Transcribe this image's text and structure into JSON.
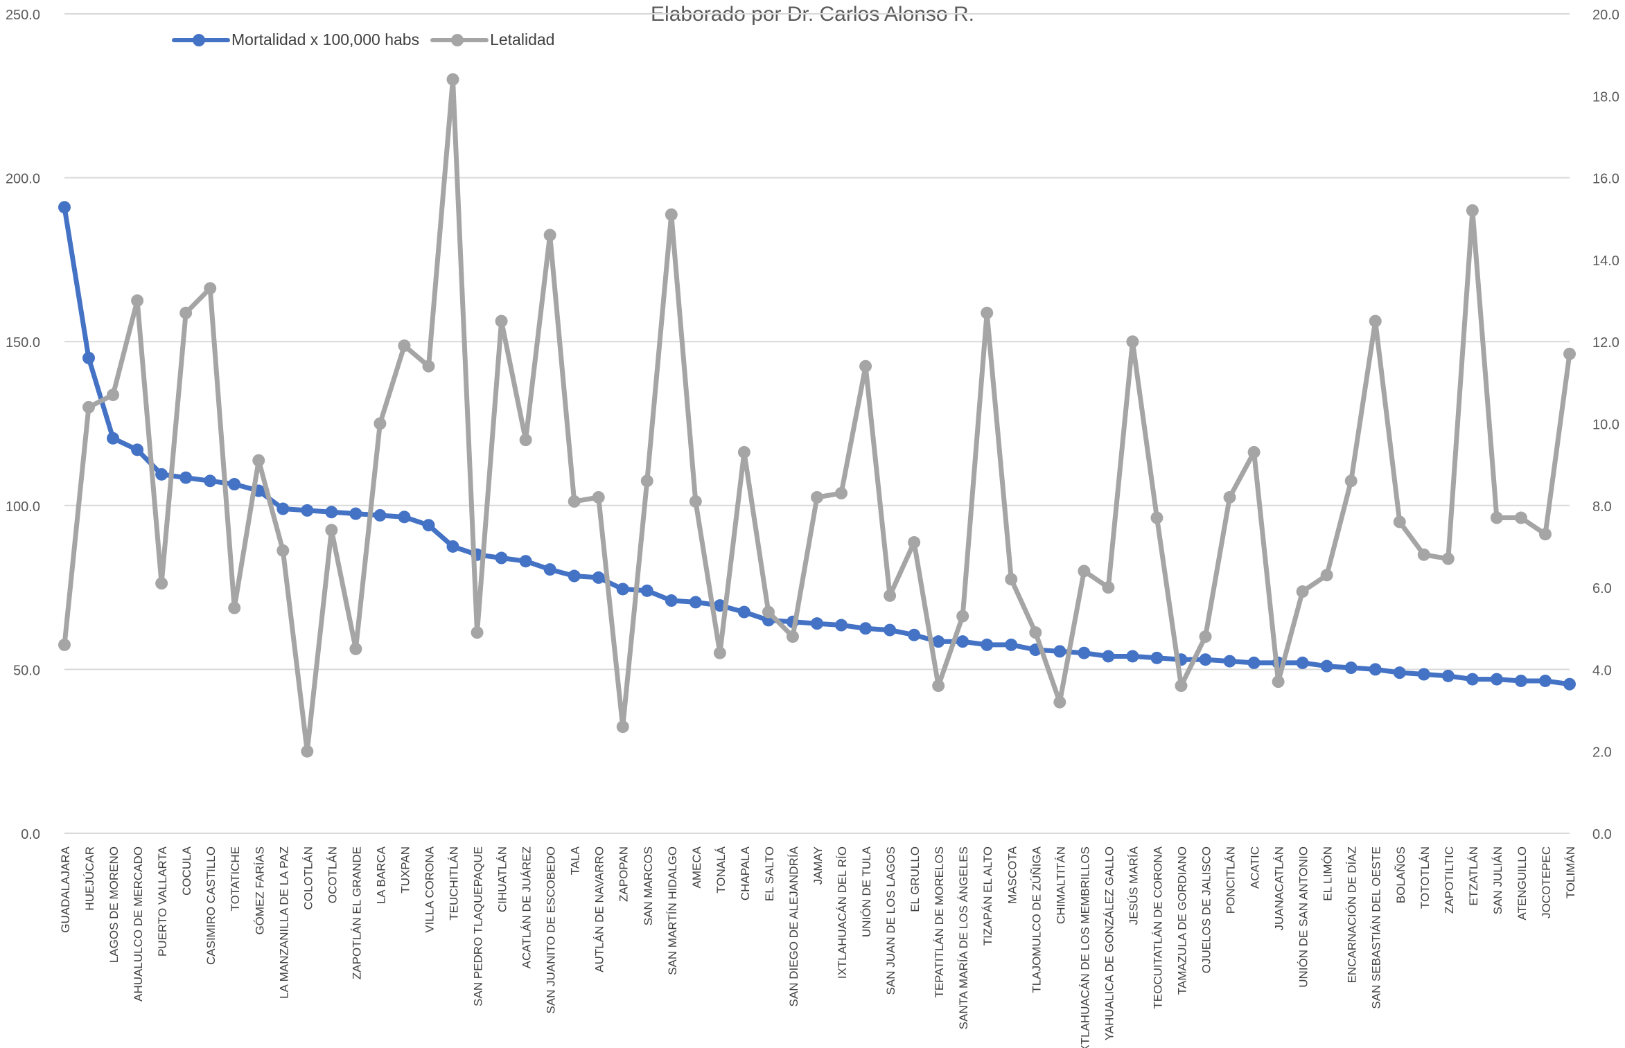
{
  "chart_data": {
    "type": "line",
    "subtitle": "Elaborado por Dr. Carlos Alonso R.",
    "categories": [
      "GUADALAJARA",
      "HUEJÚCAR",
      "LAGOS DE MORENO",
      "AHUALULCO DE MERCADO",
      "PUERTO VALLARTA",
      "COCULA",
      "CASIMIRO CASTILLO",
      "TOTATICHE",
      "GÓMEZ FARÍAS",
      "LA MANZANILLA DE LA PAZ",
      "COLOTLÁN",
      "OCOTLÁN",
      "ZAPOTLÁN EL GRANDE",
      "LA BARCA",
      "TUXPAN",
      "VILLA CORONA",
      "TEUCHITLÁN",
      "SAN PEDRO TLAQUEPAQUE",
      "CIHUATLÁN",
      "ACATLÁN DE JUÁREZ",
      "SAN JUANITO DE ESCOBEDO",
      "TALA",
      "AUTLÁN DE NAVARRO",
      "ZAPOPAN",
      "SAN MARCOS",
      "SAN MARTÍN HIDALGO",
      "AMECA",
      "TONALÁ",
      "CHAPALA",
      "EL SALTO",
      "SAN DIEGO DE ALEJANDRÍA",
      "JAMAY",
      "IXTLAHUACÁN DEL RÍO",
      "UNIÓN DE TULA",
      "SAN JUAN DE LOS LAGOS",
      "EL GRULLO",
      "TEPATITLÁN DE MORELOS",
      "SANTA MARÍA DE LOS ÁNGELES",
      "TIZAPÁN EL ALTO",
      "MASCOTA",
      "TLAJOMULCO DE ZÚÑIGA",
      "CHIMALTITÁN",
      "IXTLAHUACÁN DE LOS MEMBRILLOS",
      "YAHUALICA DE GONZÁLEZ GALLO",
      "JESÚS MARÍA",
      "TEOCUITATLÁN DE CORONA",
      "TAMAZULA DE GORDIANO",
      "OJUELOS DE JALISCO",
      "PONCITLÁN",
      "ACATIC",
      "JUANACATLÁN",
      "UNIÓN DE SAN ANTONIO",
      "EL LIMÓN",
      "ENCARNACIÓN DE DÍAZ",
      "SAN SEBASTIÁN DEL OESTE",
      "BOLAÑOS",
      "TOTOTLÁN",
      "ZAPOTILTIC",
      "ETZATLÁN",
      "SAN JULIÁN",
      "ATENGUILLO",
      "JOCOTEPEC",
      "TOLIMÁN"
    ],
    "series": [
      {
        "name": "Mortalidad x 100,000 habs",
        "axis": "left",
        "color": "#4472C4",
        "values": [
          191,
          145,
          120.5,
          117,
          109.5,
          108.5,
          107.5,
          106.5,
          104.5,
          99,
          98.5,
          98,
          97.5,
          97,
          96.5,
          94,
          87.5,
          85,
          84,
          83,
          80.5,
          78.5,
          78,
          74.5,
          74,
          71,
          70.5,
          69.5,
          67.5,
          65,
          64.5,
          64,
          63.5,
          62.5,
          62,
          60.5,
          58.5,
          58.5,
          57.5,
          57.5,
          56,
          55.5,
          55,
          54,
          54,
          53.5,
          53,
          53,
          52.5,
          52,
          52,
          52,
          51,
          50.5,
          50,
          49,
          48.5,
          48,
          47,
          47,
          46.5,
          46.5,
          45.5
        ]
      },
      {
        "name": "Letalidad",
        "axis": "right",
        "color": "#A5A5A5",
        "values": [
          4.6,
          10.4,
          10.7,
          13.0,
          6.1,
          12.7,
          13.3,
          5.5,
          9.1,
          6.9,
          2.0,
          7.4,
          4.5,
          10.0,
          11.9,
          11.4,
          18.4,
          4.9,
          12.5,
          9.6,
          14.6,
          8.1,
          8.2,
          2.6,
          8.6,
          15.1,
          8.1,
          4.4,
          9.3,
          5.4,
          4.8,
          8.2,
          8.3,
          11.4,
          5.8,
          7.1,
          3.6,
          5.3,
          12.7,
          6.2,
          4.9,
          3.2,
          6.4,
          6.0,
          12.0,
          7.7,
          3.6,
          4.8,
          8.2,
          9.3,
          3.7,
          5.9,
          6.3,
          8.6,
          12.5,
          7.6,
          6.8,
          6.7,
          15.2,
          7.7,
          7.7,
          7.3,
          11.7
        ]
      }
    ],
    "ylim": [
      0,
      250
    ],
    "ylim_right": [
      0,
      20
    ],
    "yticks_left": [
      "0.0",
      "50.0",
      "100.0",
      "150.0",
      "200.0",
      "250.0"
    ],
    "yticks_right": [
      "0.0",
      "2.0",
      "4.0",
      "6.0",
      "8.0",
      "10.0",
      "12.0",
      "14.0",
      "16.0",
      "18.0",
      "20.0"
    ],
    "grid": true,
    "legend_position": "top-left"
  }
}
